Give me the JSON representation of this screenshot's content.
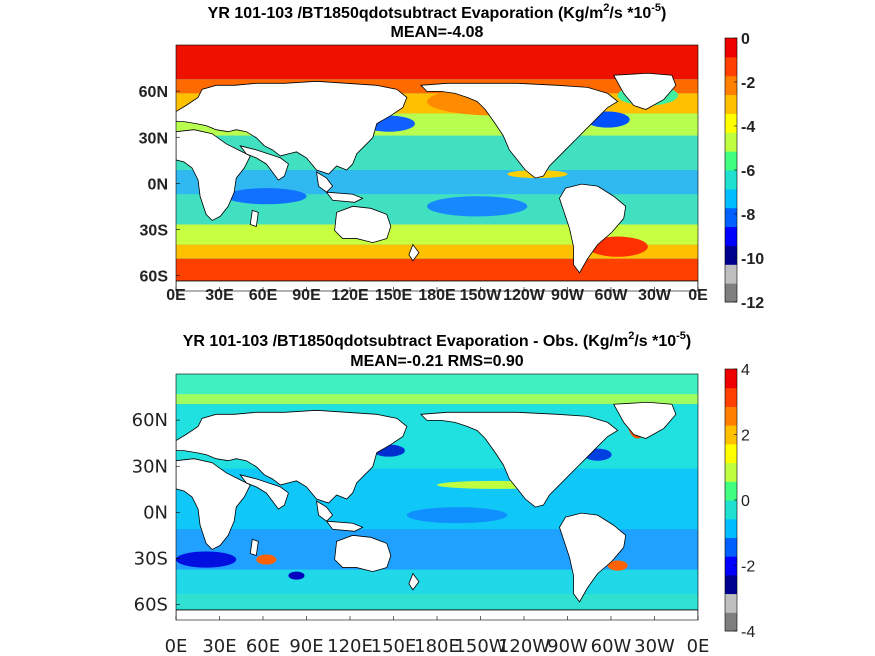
{
  "chart_data": [
    {
      "type": "heatmap",
      "title": "YR 101-103 /BT1850qdotsubtract  Evaporation (Kg/m²/s *10⁻⁵)",
      "title_parts": [
        "YR 101-103 /BT1850qdotsubtract  Evaporation (Kg/m",
        "2",
        "/s *10",
        "-5",
        ")"
      ],
      "subtitle": "MEAN=-4.08",
      "x_ticks": [
        "0E",
        "30E",
        "60E",
        "90E",
        "120E",
        "150E",
        "180E",
        "150W",
        "120W",
        "90W",
        "60W",
        "30W",
        "0E"
      ],
      "y_ticks": [
        "60N",
        "30N",
        "0N",
        "30S",
        "60S"
      ],
      "y_tick_values": [
        60,
        30,
        0,
        -30,
        -60
      ],
      "colorbar_ticks": [
        "0",
        "-2",
        "-4",
        "-6",
        "-8",
        "-10",
        "-12"
      ],
      "colorbar_values": [
        0,
        -2,
        -4,
        -6,
        -8,
        -10,
        -12
      ],
      "clim": [
        -12,
        0
      ],
      "mean": -4.08
    },
    {
      "type": "heatmap",
      "title": "YR 101-103 /BT1850qdotsubtract Evaporation - Obs. (Kg/m²/s *10⁻⁵)",
      "title_parts": [
        "YR 101-103 /BT1850qdotsubtract Evaporation - Obs. (Kg/m",
        "2",
        "/s *10",
        "-5",
        ")"
      ],
      "subtitle": "MEAN=-0.21   RMS=0.90",
      "x_ticks": [
        "0E",
        "30E",
        "60E",
        "90E",
        "120E",
        "150E",
        "180E",
        "150W",
        "120W",
        "90W",
        "60W",
        "30W",
        "0E"
      ],
      "y_ticks": [
        "60N",
        "30N",
        "0N",
        "30S",
        "60S"
      ],
      "y_tick_values": [
        60,
        30,
        0,
        -30,
        -60
      ],
      "colorbar_ticks": [
        "4",
        "2",
        "0",
        "-2",
        "-4"
      ],
      "colorbar_values": [
        4,
        2,
        0,
        -2,
        -4
      ],
      "clim": [
        -4,
        4
      ],
      "mean": -0.21,
      "rms": 0.9
    }
  ],
  "colors": {
    "colormap": [
      "#7f7f7f",
      "#bfbfbf",
      "#00008f",
      "#0000ff",
      "#0060ff",
      "#00bfff",
      "#20e0d0",
      "#40ff80",
      "#c0ff40",
      "#ffff00",
      "#ffc000",
      "#ff8000",
      "#ff4000",
      "#ee0000"
    ],
    "land": "#ffffff",
    "coast": "#000000"
  }
}
